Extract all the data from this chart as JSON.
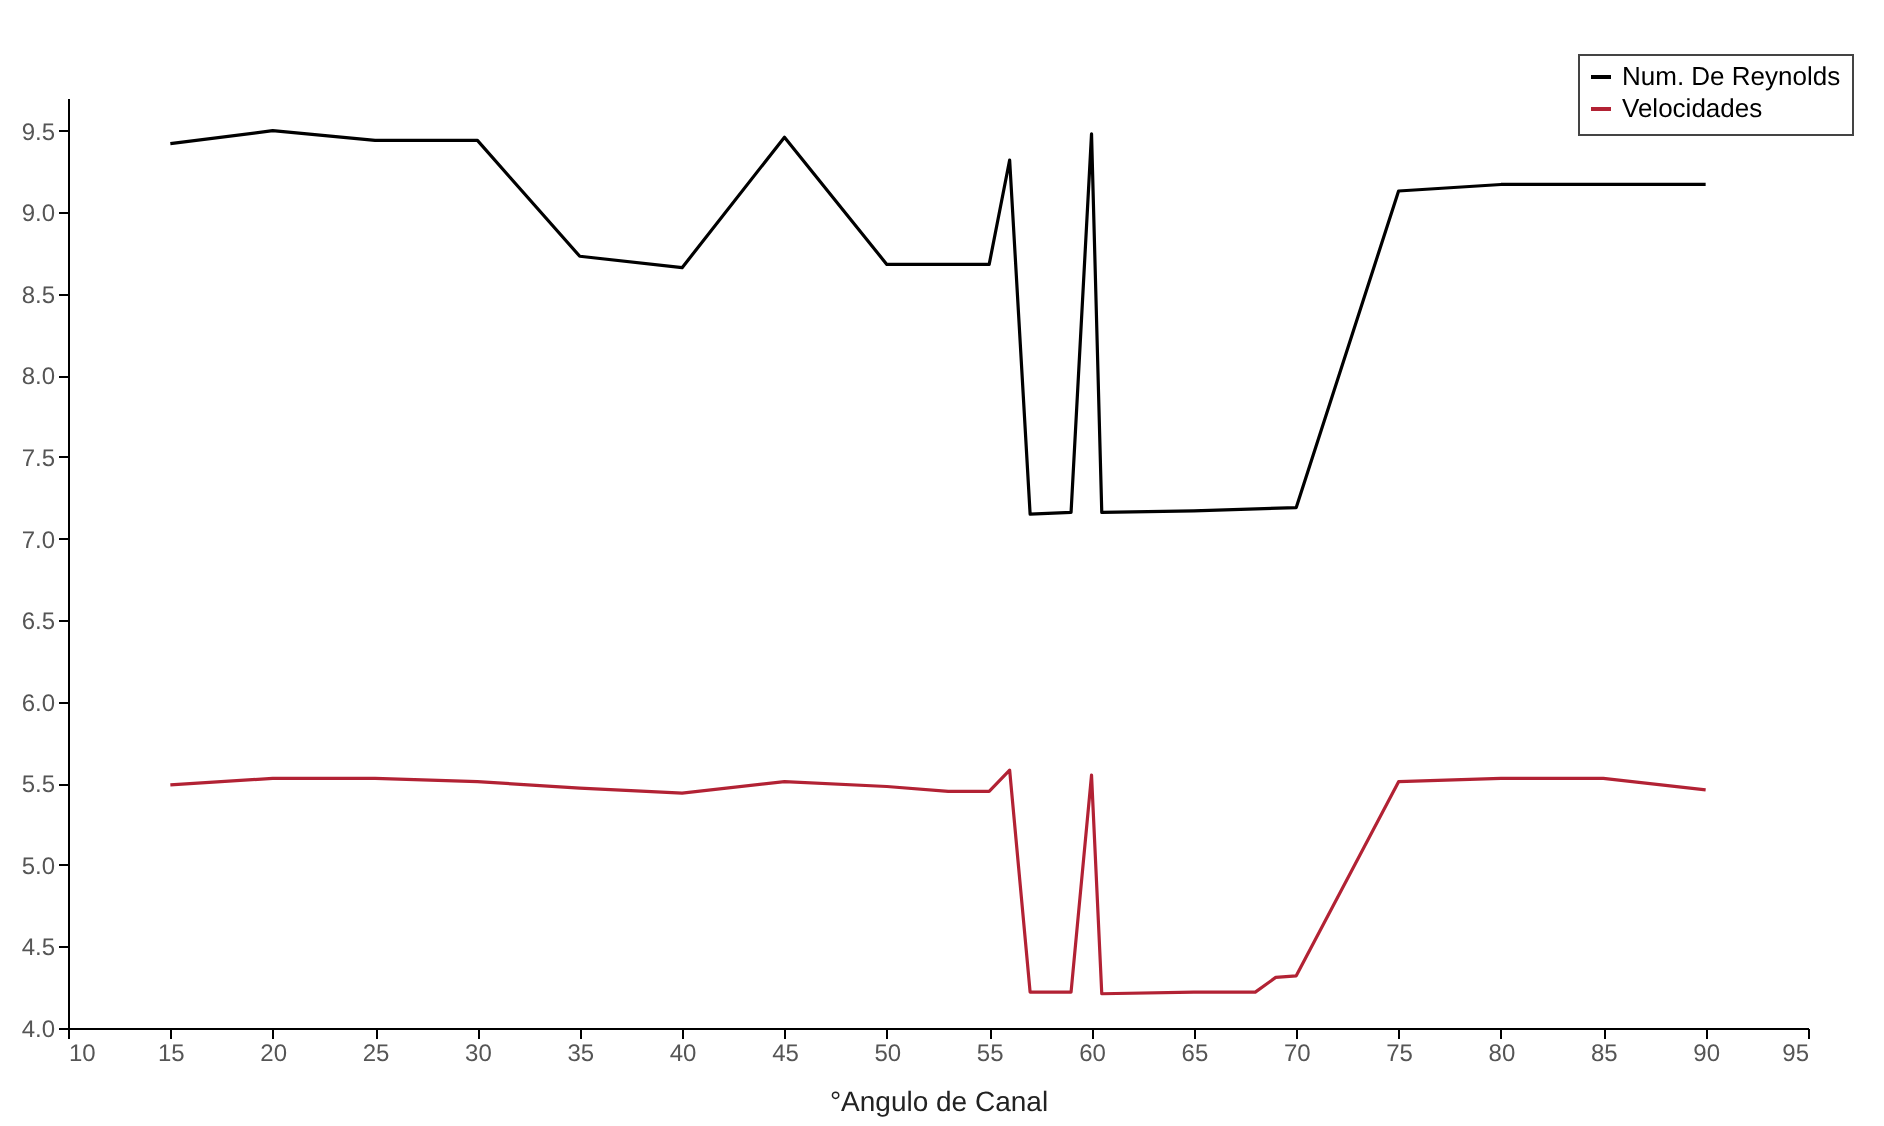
{
  "chart_data": {
    "type": "line",
    "xlabel": "°Angulo de Canal",
    "xlim": [
      10,
      95
    ],
    "xticks": [
      10,
      15,
      20,
      25,
      30,
      35,
      40,
      45,
      50,
      55,
      60,
      65,
      70,
      75,
      80,
      85,
      90,
      95
    ],
    "ylim": [
      4.0,
      9.7
    ],
    "yticks": [
      {
        "value": 4,
        "label": "4.0"
      },
      {
        "value": 4.5,
        "label": "4.5"
      },
      {
        "value": 5,
        "label": "5.0"
      },
      {
        "value": 5.5,
        "label": "5.5"
      },
      {
        "value": 6,
        "label": "6.0"
      },
      {
        "value": 6.5,
        "label": "6.5"
      },
      {
        "value": 7,
        "label": "7.0"
      },
      {
        "value": 7.5,
        "label": "7.5"
      },
      {
        "value": 8,
        "label": "8.0"
      },
      {
        "value": 8.5,
        "label": "8.5"
      },
      {
        "value": 9,
        "label": "9.0"
      },
      {
        "value": 9.5,
        "label": "9.5"
      }
    ],
    "grid": false,
    "legend": "top right",
    "marker": "none",
    "line_style": "solid",
    "series": [
      {
        "name": "Num. De Reynolds",
        "color": "#000000",
        "x": [
          15,
          20,
          25,
          30,
          35,
          40,
          45,
          50,
          55,
          56,
          57,
          59,
          60,
          60.5,
          65,
          70,
          75,
          80,
          90
        ],
        "values": [
          9.42,
          9.5,
          9.44,
          9.44,
          8.73,
          8.66,
          9.46,
          8.68,
          8.68,
          9.32,
          7.15,
          7.16,
          9.48,
          7.16,
          7.17,
          7.19,
          9.13,
          9.17,
          9.17
        ]
      },
      {
        "name": "Velocidades",
        "color": "#b22234",
        "x": [
          15,
          20,
          25,
          30,
          35,
          40,
          45,
          50,
          53,
          55,
          56,
          57,
          59,
          60,
          60.5,
          65,
          68,
          69,
          70,
          75,
          80,
          85,
          90
        ],
        "values": [
          5.49,
          5.53,
          5.53,
          5.51,
          5.47,
          5.44,
          5.51,
          5.48,
          5.45,
          5.45,
          5.58,
          4.22,
          4.22,
          5.55,
          4.21,
          4.22,
          4.22,
          4.31,
          4.32,
          5.51,
          5.53,
          5.53,
          5.46
        ]
      }
    ]
  }
}
